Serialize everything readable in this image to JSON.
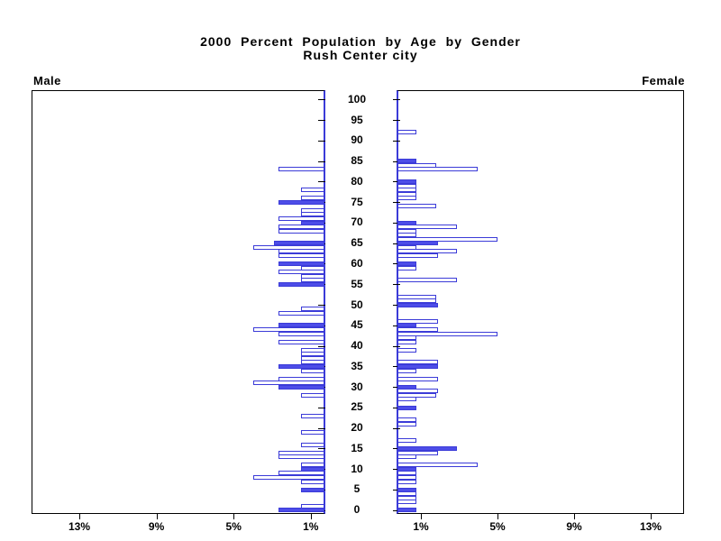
{
  "header": {
    "title": "2000 Percent Population by Age by Gender",
    "subtitle": "Rush Center city",
    "left_panel_label": "Male",
    "right_panel_label": "Female"
  },
  "colors": {
    "bar_fill": "#4d4de8",
    "bar_border": "#3b3bd8",
    "center_axis": "#3b3bd8",
    "frame": "#000000",
    "background": "#ffffff"
  },
  "chart_data": {
    "type": "bar",
    "variant": "population-pyramid",
    "title": "2000 Percent Population by Age by Gender",
    "subtitle": "Rush Center city",
    "orientation": "horizontal back-to-back, male bars extend left, female bars extend right",
    "age_axis_label_values": [
      0,
      5,
      10,
      15,
      20,
      25,
      30,
      35,
      40,
      45,
      50,
      55,
      60,
      65,
      70,
      75,
      80,
      85,
      90,
      95,
      100
    ],
    "pct_tick_values": [
      1,
      5,
      9,
      13
    ],
    "male_pct_tick_labels": [
      "13%",
      "9%",
      "5%",
      "1%"
    ],
    "female_pct_tick_labels": [
      "1%",
      "5%",
      "9%",
      "13%"
    ],
    "xlim_pct": [
      0,
      15.2
    ],
    "highlight_rule": "bars for ages divisible by 5 are drawn solid blue; other single-year ages are hollow (white fill, blue outline)",
    "series": [
      {
        "name": "Male",
        "side": "left",
        "points": [
          {
            "age": 83,
            "pct": 2.4
          },
          {
            "age": 78,
            "pct": 1.2
          },
          {
            "age": 76,
            "pct": 1.2
          },
          {
            "age": 75,
            "pct": 2.4
          },
          {
            "age": 73,
            "pct": 1.2
          },
          {
            "age": 72,
            "pct": 1.2
          },
          {
            "age": 71,
            "pct": 2.4
          },
          {
            "age": 70,
            "pct": 1.2
          },
          {
            "age": 69,
            "pct": 2.4
          },
          {
            "age": 68,
            "pct": 2.4
          },
          {
            "age": 65,
            "pct": 2.6
          },
          {
            "age": 64,
            "pct": 3.7
          },
          {
            "age": 63,
            "pct": 2.4
          },
          {
            "age": 62,
            "pct": 2.4
          },
          {
            "age": 60,
            "pct": 2.4
          },
          {
            "age": 59,
            "pct": 1.2
          },
          {
            "age": 58,
            "pct": 2.4
          },
          {
            "age": 57,
            "pct": 1.2
          },
          {
            "age": 56,
            "pct": 1.2
          },
          {
            "age": 55,
            "pct": 2.4
          },
          {
            "age": 49,
            "pct": 1.2
          },
          {
            "age": 48,
            "pct": 2.4
          },
          {
            "age": 45,
            "pct": 2.4
          },
          {
            "age": 44,
            "pct": 3.7
          },
          {
            "age": 43,
            "pct": 2.4
          },
          {
            "age": 41,
            "pct": 2.4
          },
          {
            "age": 39,
            "pct": 1.2
          },
          {
            "age": 38,
            "pct": 1.2
          },
          {
            "age": 37,
            "pct": 1.2
          },
          {
            "age": 36,
            "pct": 1.2
          },
          {
            "age": 35,
            "pct": 2.4
          },
          {
            "age": 34,
            "pct": 1.2
          },
          {
            "age": 32,
            "pct": 2.4
          },
          {
            "age": 31,
            "pct": 3.7
          },
          {
            "age": 30,
            "pct": 2.4
          },
          {
            "age": 28,
            "pct": 1.2
          },
          {
            "age": 23,
            "pct": 1.2
          },
          {
            "age": 19,
            "pct": 1.2
          },
          {
            "age": 16,
            "pct": 1.2
          },
          {
            "age": 14,
            "pct": 2.4
          },
          {
            "age": 13,
            "pct": 2.4
          },
          {
            "age": 11,
            "pct": 1.2
          },
          {
            "age": 10,
            "pct": 1.2
          },
          {
            "age": 9,
            "pct": 2.4
          },
          {
            "age": 8,
            "pct": 3.7
          },
          {
            "age": 7,
            "pct": 1.2
          },
          {
            "age": 5,
            "pct": 1.2
          },
          {
            "age": 1,
            "pct": 1.2
          },
          {
            "age": 0,
            "pct": 2.4
          }
        ]
      },
      {
        "name": "Female",
        "side": "right",
        "points": [
          {
            "age": 92,
            "pct": 1.0
          },
          {
            "age": 85,
            "pct": 1.0
          },
          {
            "age": 84,
            "pct": 2.0
          },
          {
            "age": 83,
            "pct": 4.2
          },
          {
            "age": 80,
            "pct": 1.0
          },
          {
            "age": 79,
            "pct": 1.0
          },
          {
            "age": 78,
            "pct": 1.0
          },
          {
            "age": 77,
            "pct": 1.0
          },
          {
            "age": 76,
            "pct": 1.0
          },
          {
            "age": 74,
            "pct": 2.0
          },
          {
            "age": 70,
            "pct": 1.0
          },
          {
            "age": 69,
            "pct": 3.1
          },
          {
            "age": 68,
            "pct": 1.0
          },
          {
            "age": 67,
            "pct": 1.0
          },
          {
            "age": 66,
            "pct": 5.2
          },
          {
            "age": 65,
            "pct": 2.1
          },
          {
            "age": 64,
            "pct": 1.0
          },
          {
            "age": 63,
            "pct": 3.1
          },
          {
            "age": 62,
            "pct": 2.1
          },
          {
            "age": 60,
            "pct": 1.0
          },
          {
            "age": 59,
            "pct": 1.0
          },
          {
            "age": 56,
            "pct": 3.1
          },
          {
            "age": 52,
            "pct": 2.0
          },
          {
            "age": 51,
            "pct": 2.0
          },
          {
            "age": 50,
            "pct": 2.1
          },
          {
            "age": 46,
            "pct": 2.1
          },
          {
            "age": 45,
            "pct": 1.0
          },
          {
            "age": 44,
            "pct": 2.1
          },
          {
            "age": 43,
            "pct": 5.2
          },
          {
            "age": 42,
            "pct": 1.0
          },
          {
            "age": 41,
            "pct": 1.0
          },
          {
            "age": 39,
            "pct": 1.0
          },
          {
            "age": 36,
            "pct": 2.1
          },
          {
            "age": 35,
            "pct": 2.1
          },
          {
            "age": 34,
            "pct": 1.0
          },
          {
            "age": 32,
            "pct": 2.1
          },
          {
            "age": 30,
            "pct": 1.0
          },
          {
            "age": 29,
            "pct": 2.1
          },
          {
            "age": 28,
            "pct": 2.0
          },
          {
            "age": 27,
            "pct": 1.0
          },
          {
            "age": 25,
            "pct": 1.0
          },
          {
            "age": 22,
            "pct": 1.0
          },
          {
            "age": 21,
            "pct": 1.0
          },
          {
            "age": 17,
            "pct": 1.0
          },
          {
            "age": 15,
            "pct": 3.1
          },
          {
            "age": 14,
            "pct": 2.1
          },
          {
            "age": 13,
            "pct": 1.0
          },
          {
            "age": 11,
            "pct": 4.2
          },
          {
            "age": 10,
            "pct": 1.0
          },
          {
            "age": 9,
            "pct": 1.0
          },
          {
            "age": 8,
            "pct": 1.0
          },
          {
            "age": 7,
            "pct": 1.0
          },
          {
            "age": 5,
            "pct": 1.0
          },
          {
            "age": 4,
            "pct": 1.0
          },
          {
            "age": 3,
            "pct": 1.0
          },
          {
            "age": 2,
            "pct": 1.0
          },
          {
            "age": 0,
            "pct": 1.0
          }
        ]
      }
    ]
  }
}
